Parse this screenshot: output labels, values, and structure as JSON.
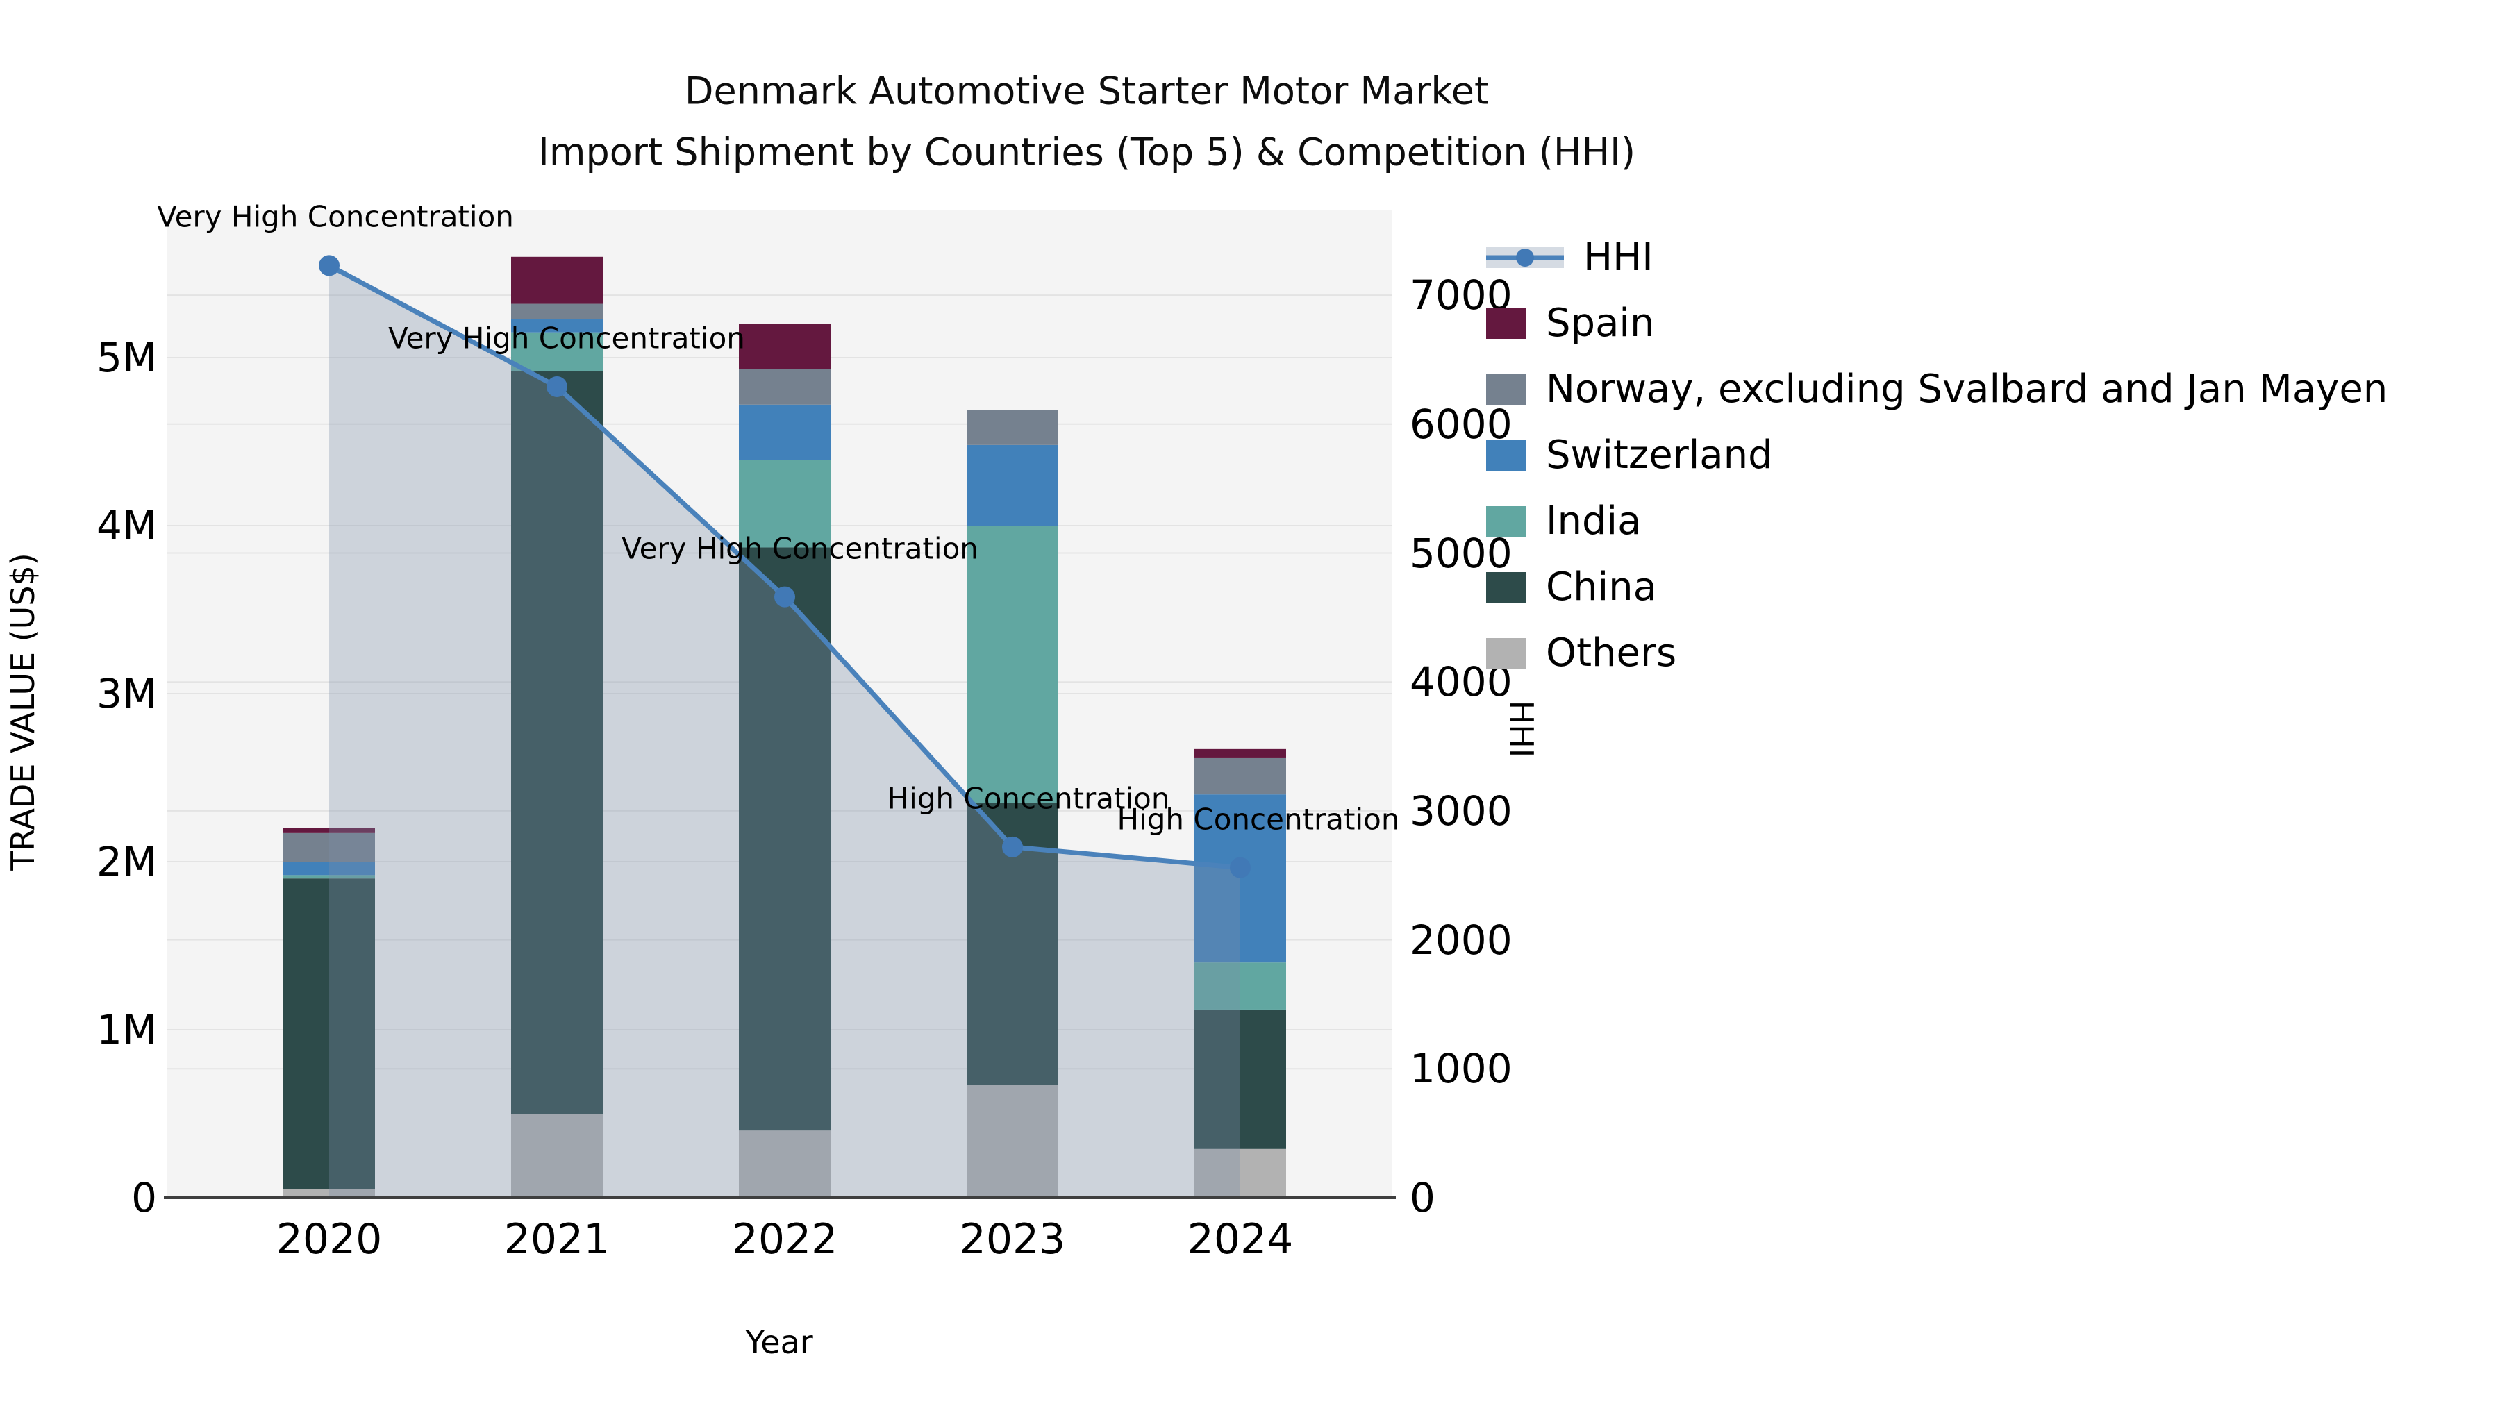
{
  "title": {
    "line1": "Denmark Automotive Starter Motor Market",
    "line2": "Import Shipment by Countries (Top 5) & Competition (HHI)"
  },
  "axes": {
    "x_label": "Year",
    "y_left_label": "TRADE VALUE (US$)",
    "y_right_label": "HHI",
    "x_tick_labels": [
      "2020",
      "2021",
      "2022",
      "2023",
      "2024"
    ],
    "y_left_tick_labels": [
      "0",
      "1M",
      "2M",
      "3M",
      "4M",
      "5M"
    ],
    "y_left_tick_values": [
      0,
      1000000,
      2000000,
      3000000,
      4000000,
      5000000
    ],
    "y_right_tick_labels": [
      "0",
      "1000",
      "2000",
      "3000",
      "4000",
      "5000",
      "6000",
      "7000"
    ],
    "y_right_tick_values": [
      0,
      1000,
      2000,
      3000,
      4000,
      5000,
      6000,
      7000
    ]
  },
  "legend": {
    "entries": [
      {
        "label": "HHI",
        "type": "line",
        "color": "#4a82bb"
      },
      {
        "label": "Spain",
        "type": "patch",
        "color": "#64183f"
      },
      {
        "label": "Norway, excluding Svalbard and Jan Mayen",
        "type": "patch",
        "color": "#75818f"
      },
      {
        "label": "Switzerland",
        "type": "patch",
        "color": "#4181ba"
      },
      {
        "label": "India",
        "type": "patch",
        "color": "#61a7a1"
      },
      {
        "label": "China",
        "type": "patch",
        "color": "#2d4b4a"
      },
      {
        "label": "Others",
        "type": "patch",
        "color": "#b2b2b2"
      }
    ]
  },
  "colors": {
    "plot_bg": "#f4f4f4",
    "grid": "#e3e3e3",
    "axis_line": "#3f3f3f",
    "hhi_line": "#4a82bb",
    "hhi_marker": "#4179b6",
    "hhi_fill": "rgba(125,143,168,0.32)",
    "text": "#000000"
  },
  "chart_data": {
    "type": "bar",
    "subtype": "stacked-bars-with-line",
    "title": "Denmark Automotive Starter Motor Market — Import Shipment by Countries (Top 5) & Competition (HHI)",
    "xlabel": "Year",
    "ylabel": "TRADE VALUE (US$)",
    "ylabel_right": "HHI",
    "categories": [
      "2020",
      "2021",
      "2022",
      "2023",
      "2024"
    ],
    "ylim_left": [
      0,
      5880000
    ],
    "ylim_right": [
      0,
      7650
    ],
    "grid": true,
    "legend_position": "right",
    "stack_order_bottom_to_top": [
      "Others",
      "China",
      "India",
      "Switzerland",
      "Norway, excluding Svalbard and Jan Mayen",
      "Spain"
    ],
    "series": [
      {
        "name": "Spain",
        "color": "#64183f",
        "values": [
          30000,
          280000,
          270000,
          0,
          50000
        ]
      },
      {
        "name": "Norway, excluding Svalbard and Jan Mayen",
        "color": "#75818f",
        "values": [
          170000,
          90000,
          210000,
          210000,
          220000
        ]
      },
      {
        "name": "Switzerland",
        "color": "#4181ba",
        "values": [
          80000,
          80000,
          330000,
          480000,
          1000000
        ]
      },
      {
        "name": "India",
        "color": "#61a7a1",
        "values": [
          20000,
          230000,
          520000,
          1650000,
          280000
        ]
      },
      {
        "name": "China",
        "color": "#2d4b4a",
        "values": [
          1850000,
          4420000,
          3470000,
          1680000,
          830000
        ]
      },
      {
        "name": "Others",
        "color": "#b2b2b2",
        "values": [
          50000,
          500000,
          400000,
          670000,
          290000
        ]
      }
    ],
    "bar_totals": [
      2200000,
      5600000,
      5200000,
      4690000,
      2670000
    ],
    "line_series": {
      "name": "HHI",
      "color": "#4a82bb",
      "axis": "right",
      "values": [
        7230,
        6290,
        4660,
        2720,
        2560
      ]
    },
    "annotations": [
      {
        "year": "2020",
        "text": "Very High Concentration"
      },
      {
        "year": "2021",
        "text": "Very High Concentration"
      },
      {
        "year": "2022",
        "text": "Very High Concentration"
      },
      {
        "year": "2023",
        "text": "High Concentration"
      },
      {
        "year": "2024",
        "text": "High Concentration"
      }
    ]
  }
}
